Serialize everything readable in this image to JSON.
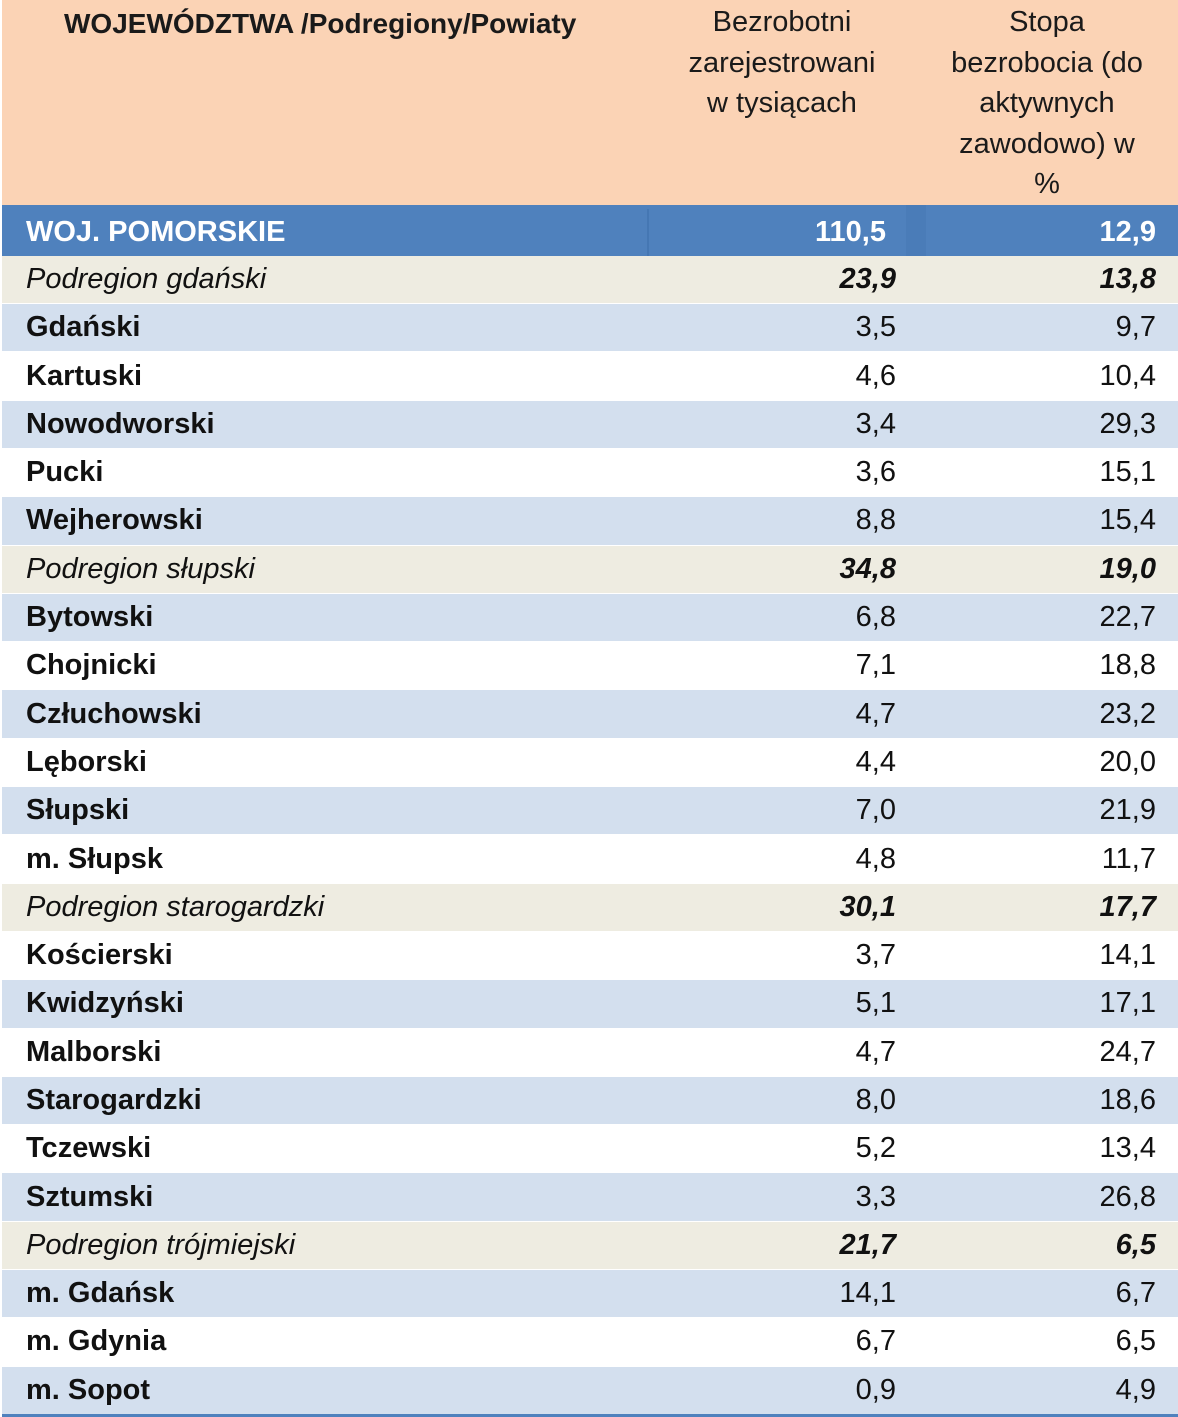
{
  "header": {
    "col_name": "WOJEWÓDZTWA /Podregiony/Powiaty",
    "col_unemployed_lines": [
      "Bezrobotni",
      "zarejestrowani",
      "w tysiącach"
    ],
    "col_rate_lines": [
      "Stopa",
      "bezrobocia  (do",
      "aktywnych",
      "zawodowo) w",
      "%"
    ]
  },
  "rows": [
    {
      "type": "total",
      "name": "WOJ. POMORSKIE",
      "unemployed": "110,5",
      "rate": "12,9"
    },
    {
      "type": "sub",
      "name": "Podregion gdański",
      "unemployed": "23,9",
      "rate": "13,8"
    },
    {
      "type": "blue",
      "name": "Gdański",
      "unemployed": "3,5",
      "rate": "9,7"
    },
    {
      "type": "white",
      "name": "Kartuski",
      "unemployed": "4,6",
      "rate": "10,4"
    },
    {
      "type": "blue",
      "name": "Nowodworski",
      "unemployed": "3,4",
      "rate": "29,3"
    },
    {
      "type": "white",
      "name": "Pucki",
      "unemployed": "3,6",
      "rate": "15,1"
    },
    {
      "type": "blue",
      "name": "Wejherowski",
      "unemployed": "8,8",
      "rate": "15,4"
    },
    {
      "type": "sub",
      "name": "Podregion słupski",
      "unemployed": "34,8",
      "rate": "19,0"
    },
    {
      "type": "blue",
      "name": "Bytowski",
      "unemployed": "6,8",
      "rate": "22,7"
    },
    {
      "type": "white",
      "name": "Chojnicki",
      "unemployed": "7,1",
      "rate": "18,8"
    },
    {
      "type": "blue",
      "name": "Człuchowski",
      "unemployed": "4,7",
      "rate": "23,2"
    },
    {
      "type": "white",
      "name": "Lęborski",
      "unemployed": "4,4",
      "rate": "20,0"
    },
    {
      "type": "blue",
      "name": "Słupski",
      "unemployed": "7,0",
      "rate": "21,9"
    },
    {
      "type": "white",
      "name": "m. Słupsk",
      "unemployed": "4,8",
      "rate": "11,7"
    },
    {
      "type": "sub",
      "name": "Podregion starogardzki",
      "unemployed": "30,1",
      "rate": "17,7"
    },
    {
      "type": "white",
      "name": "Kościerski",
      "unemployed": "3,7",
      "rate": "14,1"
    },
    {
      "type": "blue",
      "name": "Kwidzyński",
      "unemployed": "5,1",
      "rate": "17,1"
    },
    {
      "type": "white",
      "name": "Malborski",
      "unemployed": "4,7",
      "rate": "24,7"
    },
    {
      "type": "blue",
      "name": "Starogardzki",
      "unemployed": "8,0",
      "rate": "18,6"
    },
    {
      "type": "white",
      "name": "Tczewski",
      "unemployed": "5,2",
      "rate": "13,4"
    },
    {
      "type": "blue",
      "name": "Sztumski",
      "unemployed": "3,3",
      "rate": "26,8"
    },
    {
      "type": "sub",
      "name": "Podregion trójmiejski",
      "unemployed": "21,7",
      "rate": "6,5"
    },
    {
      "type": "blue",
      "name": "m. Gdańsk",
      "unemployed": "14,1",
      "rate": "6,7"
    },
    {
      "type": "white",
      "name": "m. Gdynia",
      "unemployed": "6,7",
      "rate": "6,5"
    },
    {
      "type": "blue",
      "name": "m. Sopot",
      "unemployed": "0,9",
      "rate": "4,9"
    }
  ]
}
